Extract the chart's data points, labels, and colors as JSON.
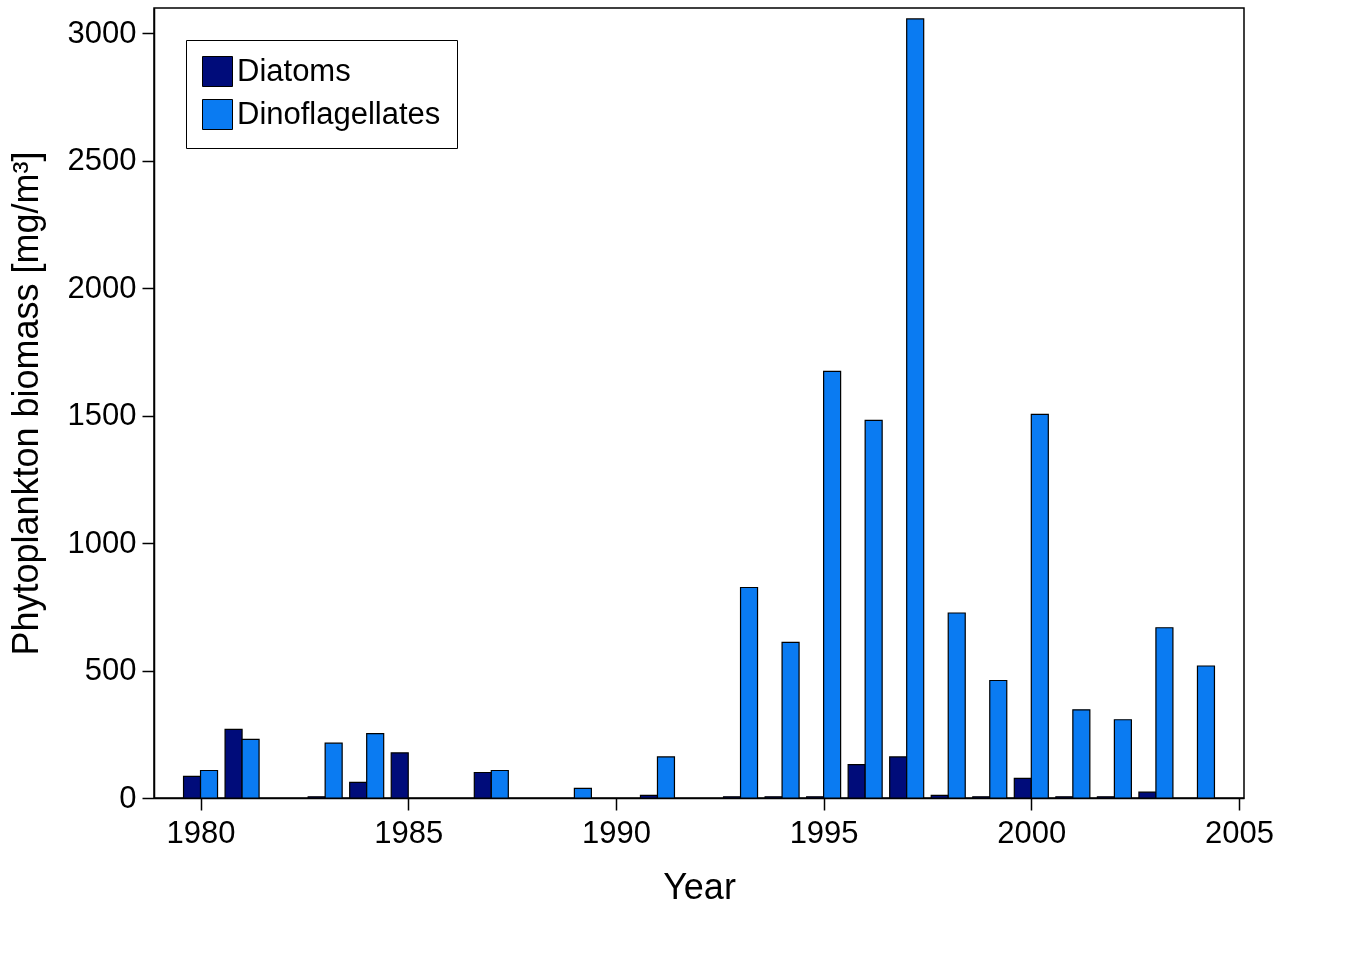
{
  "chart_data": {
    "type": "bar",
    "xlabel": "Year",
    "ylabel": "Phytoplankton biomass [mg/m³]",
    "x": [
      1980,
      1981,
      1982,
      1983,
      1984,
      1985,
      1986,
      1987,
      1988,
      1989,
      1990,
      1991,
      1992,
      1993,
      1994,
      1995,
      1996,
      1997,
      1998,
      1999,
      2000,
      2001,
      2002,
      2003,
      2004
    ],
    "series": [
      {
        "name": "Diatoms",
        "color": "#000c7a",
        "values": [
          85,
          269,
          null,
          5,
          61,
          177,
          null,
          100,
          null,
          null,
          null,
          10,
          null,
          5,
          5,
          5,
          131,
          161,
          10,
          5,
          77,
          5,
          5,
          23,
          null
        ]
      },
      {
        "name": "Dinoflagellates",
        "color": "#0a7bf2",
        "values": [
          108,
          230,
          null,
          215,
          253,
          null,
          null,
          108,
          null,
          38,
          null,
          161,
          null,
          826,
          611,
          1674,
          1482,
          3057,
          726,
          461,
          1505,
          346,
          307,
          668,
          518
        ]
      }
    ],
    "xlim": [
      1979,
      2005
    ],
    "xticks": [
      1980,
      1985,
      1990,
      1995,
      2000,
      2005
    ],
    "ylim": [
      0,
      3100
    ],
    "yticks": [
      0,
      500,
      1000,
      1500,
      2000,
      2500,
      3000
    ],
    "legend": "top left"
  }
}
